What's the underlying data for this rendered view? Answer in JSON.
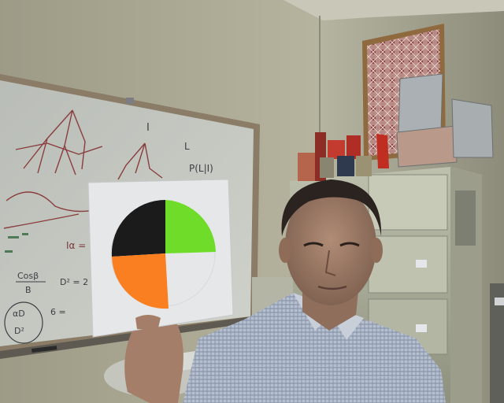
{
  "scene": {
    "description_tags": [
      "office",
      "whiteboard",
      "filing-cabinet",
      "person",
      "color-chart-card"
    ],
    "whiteboard_writing": {
      "roman_numeral": "I",
      "letter_l": "L",
      "prob_expr": "P(L|I)",
      "eq_left": "Iα =",
      "frac_top": "Cosβ",
      "frac_bottom": "B",
      "d_expr": "D² = 2",
      "eq_bottom": "6 =",
      "circled_top": "αD",
      "circled_bottom": "D²"
    },
    "colors": {
      "wall": "#a9a58e",
      "board": "#c7cbc4",
      "card": "#e6e7e9",
      "card_black": "#1b1b1b",
      "card_green": "#6fdc2a",
      "card_orange": "#f97f20",
      "cabinet": "#b7b9a7",
      "shirt": "#aeb7c7",
      "skin": "#a07f6a"
    }
  }
}
